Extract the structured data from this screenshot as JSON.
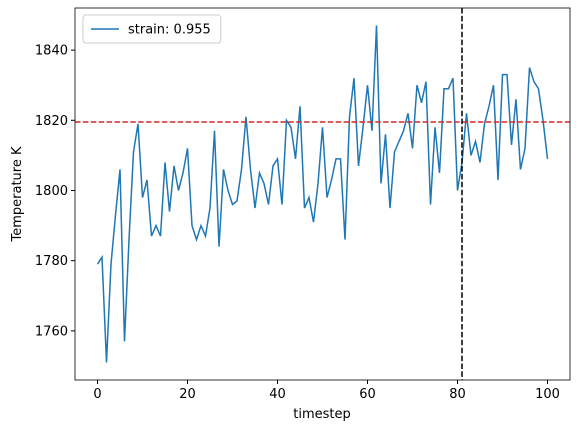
{
  "chart_data": {
    "type": "line",
    "xlabel": "timestep",
    "ylabel": "Temperature K",
    "x": [
      0,
      1,
      2,
      3,
      4,
      5,
      6,
      7,
      8,
      9,
      10,
      11,
      12,
      13,
      14,
      15,
      16,
      17,
      18,
      19,
      20,
      21,
      22,
      23,
      24,
      25,
      26,
      27,
      28,
      29,
      30,
      31,
      32,
      33,
      34,
      35,
      36,
      37,
      38,
      39,
      40,
      41,
      42,
      43,
      44,
      45,
      46,
      47,
      48,
      49,
      50,
      51,
      52,
      53,
      54,
      55,
      56,
      57,
      58,
      59,
      60,
      61,
      62,
      63,
      64,
      65,
      66,
      67,
      68,
      69,
      70,
      71,
      72,
      73,
      74,
      75,
      76,
      77,
      78,
      79,
      80,
      81,
      82,
      83,
      84,
      85,
      86,
      87,
      88,
      89,
      90,
      91,
      92,
      93,
      94,
      95,
      96,
      97,
      98,
      99,
      100
    ],
    "series": [
      {
        "name": "strain: 0.955",
        "color": "#1f77b4",
        "values": [
          1779,
          1781,
          1751,
          1779,
          1793,
          1806,
          1757,
          1786,
          1811,
          1819,
          1798,
          1803,
          1787,
          1790,
          1787,
          1808,
          1794,
          1807,
          1800,
          1805,
          1812,
          1790,
          1786,
          1790,
          1787,
          1795,
          1817,
          1784,
          1806,
          1800,
          1796,
          1797,
          1806,
          1821,
          1806,
          1795,
          1805,
          1802,
          1796,
          1807,
          1809,
          1796,
          1820,
          1818,
          1809,
          1824,
          1795,
          1798,
          1791,
          1802,
          1818,
          1798,
          1803,
          1809,
          1809,
          1786,
          1821,
          1832,
          1807,
          1818,
          1830,
          1817,
          1847,
          1802,
          1816,
          1795,
          1811,
          1814,
          1817,
          1822,
          1812,
          1830,
          1825,
          1831,
          1796,
          1818,
          1805,
          1829,
          1829,
          1832,
          1800,
          1808,
          1822,
          1810,
          1814,
          1808,
          1819,
          1824,
          1830,
          1803,
          1833,
          1833,
          1813,
          1826,
          1806,
          1812,
          1835,
          1831,
          1829,
          1820,
          1809
        ]
      }
    ],
    "hline": {
      "y": 1819.5,
      "color": "#d62728"
    },
    "vline": {
      "x": 81,
      "color": "#000000"
    },
    "xlim": [
      -5,
      105
    ],
    "ylim": [
      1746,
      1852
    ],
    "xticks": [
      0,
      20,
      40,
      60,
      80,
      100
    ],
    "yticks": [
      1760,
      1780,
      1800,
      1820,
      1840
    ],
    "legend": "upper left"
  }
}
